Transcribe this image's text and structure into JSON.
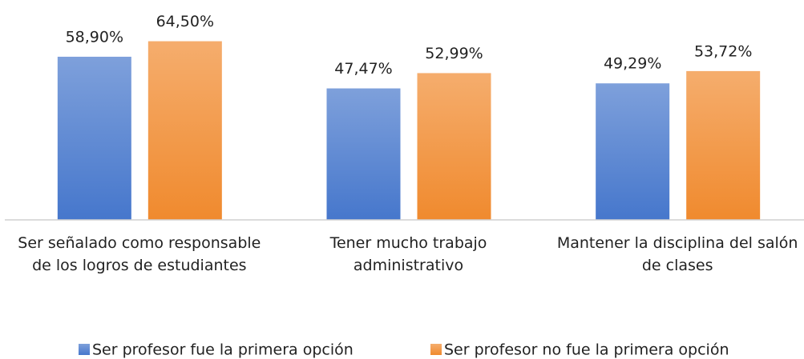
{
  "chart_data": {
    "type": "bar",
    "categories": [
      "Ser señalado como responsable de los logros de estudiantes",
      "Tener mucho trabajo administrativo",
      "Mantener la disciplina del salón de clases"
    ],
    "series": [
      {
        "name": "Ser profesor fue la primera opción",
        "color": "#4677cc",
        "values": [
          58.9,
          47.47,
          49.29
        ],
        "value_labels": [
          "58,90%",
          "47,47%",
          "49,29%"
        ]
      },
      {
        "name": "Ser profesor no fue la primera opción",
        "color": "#f08a2e",
        "values": [
          64.5,
          52.99,
          53.72
        ],
        "value_labels": [
          "64,50%",
          "52,99%",
          "53,72%"
        ]
      }
    ],
    "ylim": [
      0,
      70
    ],
    "legend": "bottom"
  }
}
